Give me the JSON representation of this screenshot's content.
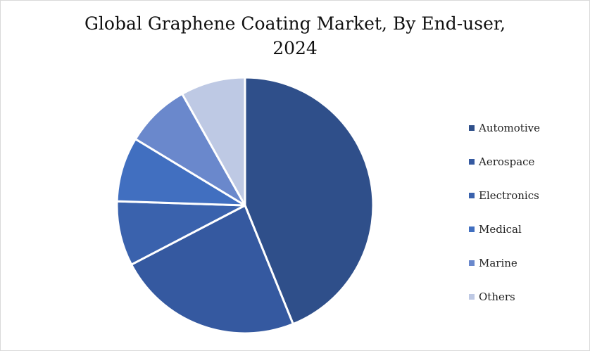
{
  "chart_data": {
    "type": "pie",
    "title": "Global Graphene Coating Market, By End-user,",
    "subtitle": "2024",
    "categories": [
      "Automotive",
      "Aerospace",
      "Electronics",
      "Medical",
      "Marine",
      "Others"
    ],
    "values": [
      43,
      23,
      8,
      8,
      8,
      8
    ],
    "colors": [
      "#2f4f8a",
      "#3559a0",
      "#3a62ad",
      "#416fc0",
      "#6a88cc",
      "#bec9e4"
    ],
    "legend_position": "right",
    "start_angle_deg": 0,
    "direction": "clockwise"
  }
}
